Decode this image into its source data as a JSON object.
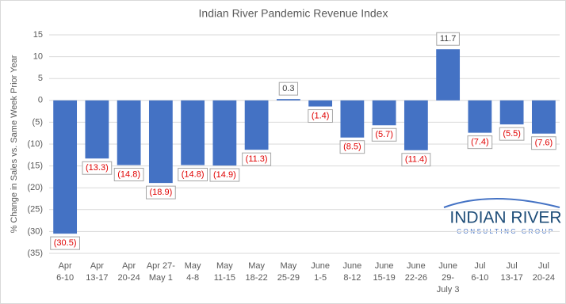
{
  "chart_data": {
    "type": "bar",
    "title": "Indian River Pandemic Revenue Index",
    "y_label": "% Change in Sales vs. Same Week Prior Year",
    "categories": [
      [
        "Apr",
        "6-10"
      ],
      [
        "Apr",
        "13-17"
      ],
      [
        "Apr",
        "20-24"
      ],
      [
        "Apr 27-",
        "May 1"
      ],
      [
        "May",
        "4-8"
      ],
      [
        "May",
        "11-15"
      ],
      [
        "May",
        "18-22"
      ],
      [
        "May",
        "25-29"
      ],
      [
        "June",
        "1-5"
      ],
      [
        "June",
        "8-12"
      ],
      [
        "June",
        "15-19"
      ],
      [
        "June",
        "22-26"
      ],
      [
        "June",
        "29-",
        "July 3"
      ],
      [
        "Jul",
        "6-10"
      ],
      [
        "Jul",
        "13-17"
      ],
      [
        "Jul",
        "20-24"
      ]
    ],
    "values": [
      -30.5,
      -13.3,
      -14.8,
      -18.9,
      -14.8,
      -14.9,
      -11.3,
      0.3,
      -1.4,
      -8.5,
      -5.7,
      -11.4,
      11.7,
      -7.4,
      -5.5,
      -7.6
    ],
    "value_labels": [
      "(30.5)",
      "(13.3)",
      "(14.8)",
      "(18.9)",
      "(14.8)",
      "(14.9)",
      "(11.3)",
      "0.3",
      "(1.4)",
      "(8.5)",
      "(5.7)",
      "(11.4)",
      "11.7",
      "(7.4)",
      "(5.5)",
      "(7.6)"
    ],
    "color": "#4472c4",
    "ylim": [
      -35,
      15
    ],
    "yticks": [
      15,
      10,
      5,
      0,
      {
        "value": -5,
        "label": "(5)"
      },
      {
        "value": -10,
        "label": "(10)"
      },
      {
        "value": -15,
        "label": "(15)"
      },
      {
        "value": -20,
        "label": "(20)"
      },
      {
        "value": -25,
        "label": "(25)"
      },
      {
        "value": -30,
        "label": "(30)"
      },
      {
        "value": -35,
        "label": "(35)"
      }
    ],
    "grid": true
  },
  "logo": {
    "name": "INDIAN RIVER",
    "tagline": "CONSULTING GROUP"
  }
}
